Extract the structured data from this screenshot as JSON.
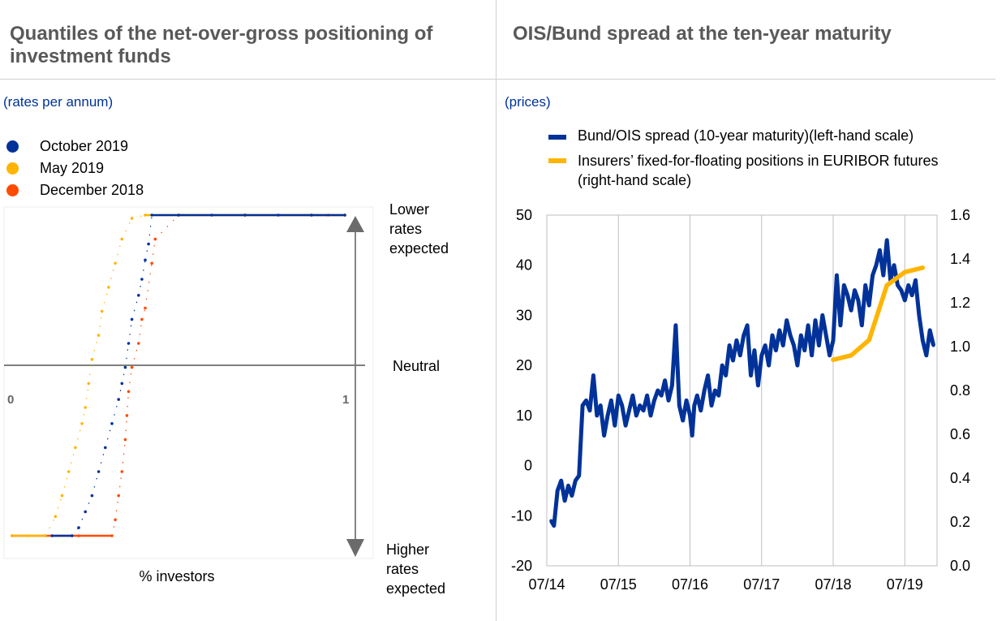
{
  "left_panel": {
    "title_line1": "Quantiles of the net-over-gross positioning of",
    "title_line2": "investment funds",
    "subtitle": "(rates per annum)",
    "legend": [
      {
        "label": "October 2019",
        "color": "#003299"
      },
      {
        "label": "May 2019",
        "color": "#FFB400"
      },
      {
        "label": "December 2018",
        "color": "#FF4B00"
      }
    ],
    "annotations": {
      "top": [
        "Lower",
        "rates",
        "expected"
      ],
      "middle": "Neutral",
      "bottom": [
        "Higher",
        "rates",
        "expected"
      ]
    },
    "x_tick_left": "0",
    "x_tick_right": "1",
    "xlabel": "% investors"
  },
  "right_panel": {
    "title": "OIS/Bund spread at the ten-year maturity",
    "subtitle": "(prices)",
    "legend": [
      {
        "label": "Bund/OIS spread (10-year maturity)(left-hand scale)",
        "color": "#003299"
      },
      {
        "label_line1": "Insurers’ fixed-for-floating positions in EURIBOR futures",
        "label_line2": "(right-hand scale)",
        "color": "#FFB400"
      }
    ]
  },
  "chart_data": [
    {
      "type": "scatter",
      "title": "Quantiles of the net-over-gross positioning of investment funds",
      "xlabel": "% investors",
      "xlim": [
        0,
        1
      ],
      "ylim": [
        -1,
        1
      ],
      "series": [
        {
          "name": "October 2019",
          "x": [
            0.12,
            0.18,
            0.2,
            0.22,
            0.24,
            0.26,
            0.28,
            0.3,
            0.32,
            0.33,
            0.34,
            0.35,
            0.36,
            0.38,
            0.39,
            0.4,
            0.41,
            0.42,
            0.5,
            0.6,
            0.7,
            0.8,
            0.9,
            1.0
          ],
          "y": [
            -1,
            -1,
            -0.95,
            -0.85,
            -0.75,
            -0.6,
            -0.45,
            -0.3,
            -0.15,
            -0.05,
            0.05,
            0.2,
            0.35,
            0.5,
            0.6,
            0.72,
            0.82,
            1,
            1,
            1,
            1,
            1,
            1,
            1
          ]
        },
        {
          "name": "May 2019",
          "x": [
            0.0,
            0.05,
            0.1,
            0.13,
            0.15,
            0.17,
            0.19,
            0.21,
            0.22,
            0.23,
            0.24,
            0.26,
            0.27,
            0.29,
            0.31,
            0.33,
            0.36,
            0.4,
            0.5,
            0.7,
            1.0
          ],
          "y": [
            -1,
            -1,
            -1,
            -0.88,
            -0.75,
            -0.6,
            -0.45,
            -0.3,
            -0.2,
            -0.05,
            0.1,
            0.25,
            0.4,
            0.55,
            0.7,
            0.85,
            0.98,
            1,
            1,
            1,
            1
          ]
        },
        {
          "name": "December 2018",
          "x": [
            0.0,
            0.1,
            0.2,
            0.3,
            0.31,
            0.32,
            0.33,
            0.34,
            0.345,
            0.35,
            0.36,
            0.38,
            0.39,
            0.4,
            0.42,
            0.43,
            0.5,
            0.7,
            0.9,
            0.95,
            1.0
          ],
          "y": [
            -1,
            -1,
            -1,
            -1,
            -0.9,
            -0.75,
            -0.6,
            -0.4,
            -0.25,
            -0.1,
            0.05,
            0.2,
            0.35,
            0.42,
            0.7,
            0.85,
            1,
            1,
            1,
            1,
            1
          ]
        }
      ],
      "annotations": [
        "Lower rates expected",
        "Neutral",
        "Higher rates expected"
      ]
    },
    {
      "type": "line",
      "title": "OIS/Bund spread at the ten-year maturity",
      "x_ticks": [
        "07/14",
        "07/15",
        "07/16",
        "07/17",
        "07/18",
        "07/19"
      ],
      "ylim": [
        -20,
        50
      ],
      "y_ticks": [
        -20,
        -10,
        0,
        10,
        20,
        30,
        40,
        50
      ],
      "y2lim": [
        0.0,
        1.6
      ],
      "y2_ticks": [
        "0.0",
        "0.2",
        "0.4",
        "0.6",
        "0.8",
        "1.0",
        "1.2",
        "1.4",
        "1.6"
      ],
      "legend_position": "top",
      "series": [
        {
          "name": "Bund/OIS spread (10-year maturity)(left-hand scale)",
          "axis": "left",
          "x": [
            2014.56,
            2014.6,
            2014.65,
            2014.7,
            2014.75,
            2014.8,
            2014.85,
            2014.9,
            2014.95,
            2015.0,
            2015.05,
            2015.1,
            2015.15,
            2015.2,
            2015.25,
            2015.3,
            2015.35,
            2015.4,
            2015.45,
            2015.5,
            2015.55,
            2015.6,
            2015.65,
            2015.7,
            2015.75,
            2015.8,
            2015.85,
            2015.9,
            2015.95,
            2016.0,
            2016.05,
            2016.1,
            2016.15,
            2016.2,
            2016.25,
            2016.3,
            2016.35,
            2016.4,
            2016.45,
            2016.5,
            2016.53,
            2016.56,
            2016.6,
            2016.65,
            2016.7,
            2016.75,
            2016.8,
            2016.85,
            2016.9,
            2016.95,
            2017.0,
            2017.05,
            2017.1,
            2017.15,
            2017.2,
            2017.25,
            2017.3,
            2017.35,
            2017.4,
            2017.45,
            2017.5,
            2017.55,
            2017.6,
            2017.65,
            2017.7,
            2017.75,
            2017.8,
            2017.85,
            2017.9,
            2017.95,
            2018.0,
            2018.05,
            2018.1,
            2018.15,
            2018.2,
            2018.25,
            2018.3,
            2018.35,
            2018.4,
            2018.45,
            2018.5,
            2018.55,
            2018.6,
            2018.65,
            2018.7,
            2018.75,
            2018.8,
            2018.85,
            2018.9,
            2018.95,
            2019.0,
            2019.05,
            2019.1,
            2019.15,
            2019.2,
            2019.25,
            2019.3,
            2019.35,
            2019.4,
            2019.45,
            2019.5,
            2019.55,
            2019.6,
            2019.65,
            2019.7,
            2019.75,
            2019.8,
            2019.85,
            2019.9
          ],
          "y": [
            -11,
            -12,
            -5,
            -3,
            -7,
            -4,
            -6,
            -3,
            -2,
            12,
            13,
            11,
            18,
            10,
            12,
            6,
            10,
            13,
            8,
            14,
            12,
            8,
            11,
            14,
            10,
            12,
            11,
            14,
            10,
            13,
            15,
            14,
            17,
            13,
            16,
            28,
            12,
            9,
            13,
            10,
            6,
            12,
            14,
            11,
            15,
            18,
            12,
            15,
            14,
            20,
            18,
            24,
            21,
            25,
            22,
            26,
            28,
            18,
            23,
            16,
            22,
            24,
            20,
            26,
            23,
            27,
            24,
            29,
            26,
            24,
            20,
            26,
            23,
            28,
            22,
            29,
            24,
            30,
            26,
            22,
            25,
            38,
            28,
            36,
            34,
            31,
            35,
            33,
            28,
            36,
            32,
            38,
            40,
            43,
            38,
            45,
            37,
            40,
            36,
            35,
            33,
            36,
            34,
            37,
            30,
            25,
            22,
            27,
            24
          ]
        },
        {
          "name": "Insurers’ fixed-for-floating positions in EURIBOR futures (right-hand scale)",
          "axis": "right",
          "x": [
            2018.5,
            2018.75,
            2019.0,
            2019.25,
            2019.5,
            2019.75
          ],
          "y": [
            0.94,
            0.96,
            1.03,
            1.28,
            1.34,
            1.36
          ]
        }
      ]
    }
  ]
}
